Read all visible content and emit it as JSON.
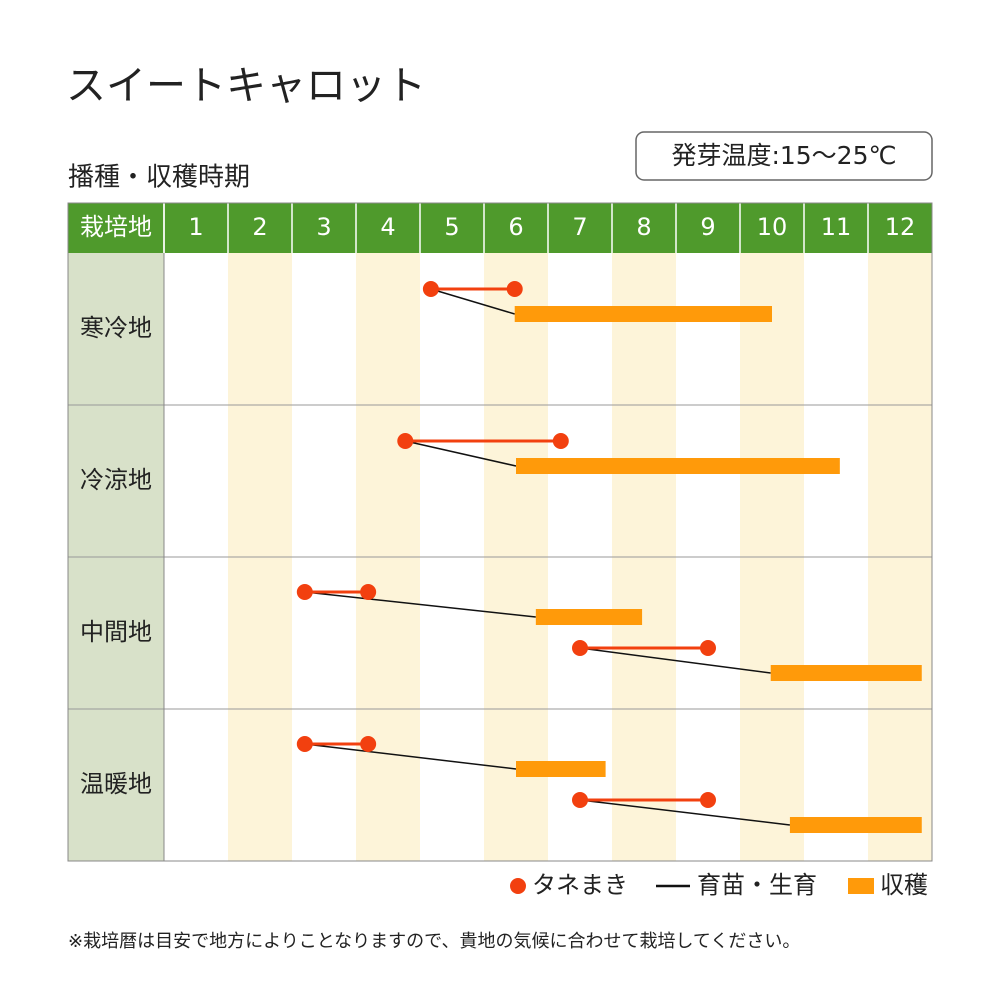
{
  "chart_data": {
    "type": "calendar",
    "title": "スイートキャロット",
    "subtitle": "播種・収穫時期",
    "note": "発芽温度:15〜25℃",
    "header_label": "栽培地",
    "xlim": [
      1,
      13
    ],
    "xticks": [
      1,
      2,
      3,
      4,
      5,
      6,
      7,
      8,
      9,
      10,
      11,
      12
    ],
    "regions": [
      {
        "name": "寒冷地",
        "plantings": [
          {
            "sow": [
              5.17,
              6.48
            ],
            "harvest": [
              6.48,
              10.5
            ]
          }
        ]
      },
      {
        "name": "冷涼地",
        "plantings": [
          {
            "sow": [
              4.77,
              7.2
            ],
            "harvest": [
              6.5,
              11.56
            ]
          }
        ]
      },
      {
        "name": "中間地",
        "plantings": [
          {
            "sow": [
              3.2,
              4.19
            ],
            "harvest": [
              6.81,
              8.47
            ]
          },
          {
            "sow": [
              7.5,
              9.5
            ],
            "harvest": [
              10.48,
              12.84
            ]
          }
        ]
      },
      {
        "name": "温暖地",
        "plantings": [
          {
            "sow": [
              3.2,
              4.19
            ],
            "harvest": [
              6.5,
              7.9
            ]
          },
          {
            "sow": [
              7.5,
              9.5
            ],
            "harvest": [
              10.78,
              12.84
            ]
          }
        ]
      }
    ],
    "legend": [
      {
        "name": "タネまき",
        "color": "#f2400f"
      },
      {
        "name": "育苗・生育",
        "color": "#111111"
      },
      {
        "name": "収穫",
        "color": "#ff9a0a"
      }
    ],
    "footnote": "※栽培暦は目安で地方によりことなりますので、貴地の気候に合わせて栽培してください。"
  }
}
